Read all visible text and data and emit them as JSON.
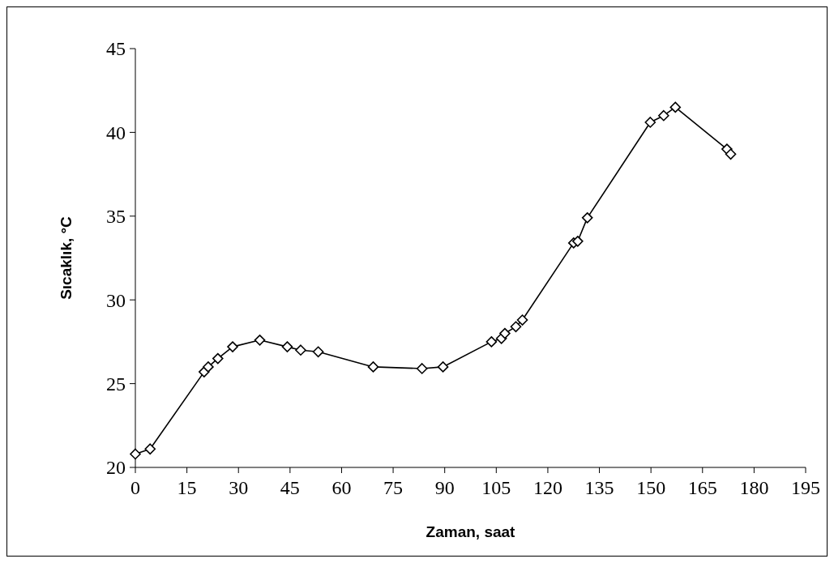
{
  "chart_data": {
    "type": "line",
    "xlabel": "Zaman, saat",
    "ylabel": "Sıcaklık, °C",
    "x": [
      0,
      4.3,
      20.0,
      21.2,
      24.0,
      28.3,
      36.2,
      44.2,
      48.1,
      53.2,
      69.2,
      83.4,
      89.5,
      103.6,
      106.5,
      107.5,
      110.7,
      112.6,
      127.5,
      128.7,
      131.5,
      149.8,
      153.7,
      157.1,
      172.1,
      173.2
    ],
    "series": [
      {
        "color": "#000000",
        "values": [
          20.8,
          21.1,
          25.7,
          26.0,
          26.5,
          27.2,
          27.6,
          27.2,
          27.0,
          26.9,
          26.0,
          25.9,
          26.0,
          27.5,
          27.7,
          28.0,
          28.4,
          28.8,
          33.4,
          33.5,
          34.9,
          40.6,
          41.0,
          41.5,
          39.0,
          38.7
        ]
      }
    ],
    "xlim": [
      0,
      195
    ],
    "xticks": [
      0,
      15,
      30,
      45,
      60,
      75,
      90,
      105,
      120,
      135,
      150,
      165,
      180,
      195
    ],
    "ylim": [
      20,
      45
    ],
    "yticks": [
      20,
      25,
      30,
      35,
      40,
      45
    ],
    "grid": false,
    "marker": "diamond",
    "line_style": "solid"
  }
}
